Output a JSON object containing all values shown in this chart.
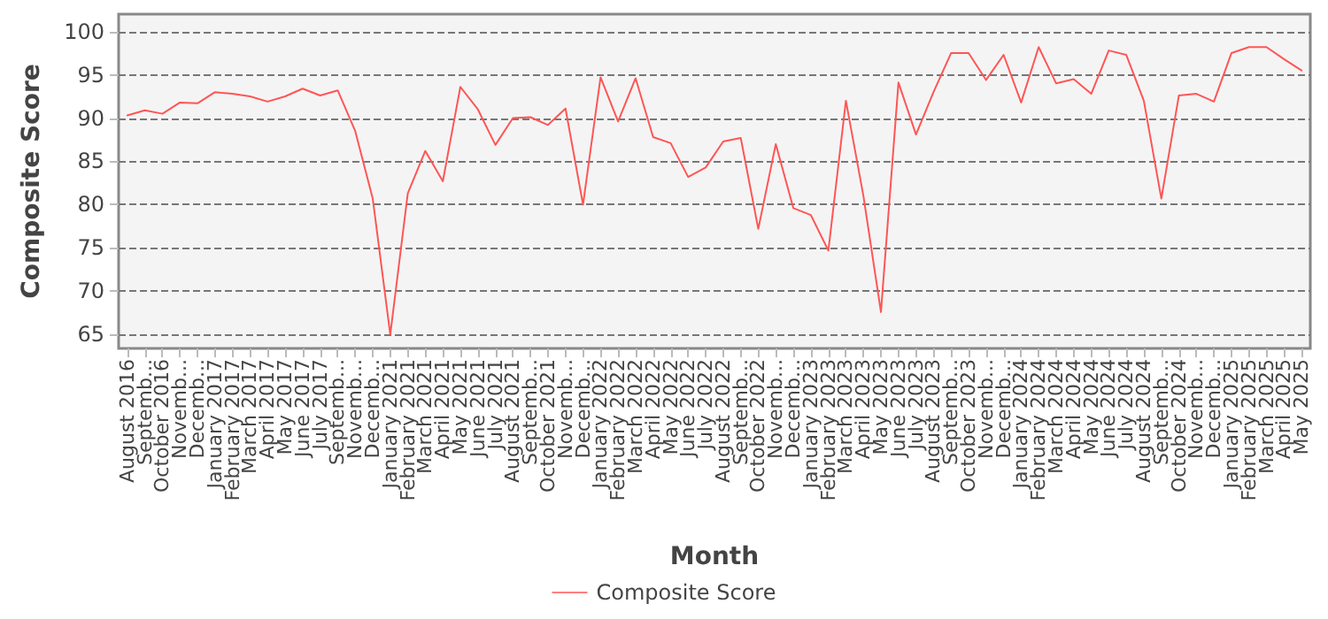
{
  "chart_data": {
    "type": "line",
    "xlabel": "Month",
    "ylabel": "Composite Score",
    "categories": [
      "August 2016",
      "Septemb...",
      "October 2016",
      "Novemb...",
      "Decemb...",
      "January 2017",
      "February 2017",
      "March 2017",
      "April 2017",
      "May 2017",
      "June 2017",
      "July 2017",
      "Septemb...",
      "Novemb...",
      "Decemb...",
      "January 2021",
      "February 2021",
      "March 2021",
      "April 2021",
      "May 2021",
      "June 2021",
      "July 2021",
      "August 2021",
      "Septemb...",
      "October 2021",
      "Novemb...",
      "Decemb...",
      "January 2022",
      "February 2022",
      "March 2022",
      "April 2022",
      "May 2022",
      "June 2022",
      "July 2022",
      "August 2022",
      "Septemb...",
      "October 2022",
      "Novemb...",
      "Decemb...",
      "January 2023",
      "February 2023",
      "March 2023",
      "April 2023",
      "May 2023",
      "June 2023",
      "July 2023",
      "August 2023",
      "Septemb...",
      "October 2023",
      "Novemb...",
      "Decemb...",
      "January 2024",
      "February 2024",
      "March 2024",
      "April 2024",
      "May 2024",
      "June 2024",
      "July 2024",
      "August 2024",
      "Septemb...",
      "October 2024",
      "Novemb...",
      "Decemb...",
      "January 2025",
      "February 2025",
      "March 2025",
      "April 2025",
      "May 2025"
    ],
    "series": [
      {
        "name": "Composite Score",
        "color": "#ff5555",
        "values": [
          90.3,
          90.9,
          90.5,
          91.8,
          91.7,
          93.0,
          92.8,
          92.5,
          91.9,
          92.5,
          93.4,
          92.6,
          93.2,
          88.5,
          80.7,
          65.0,
          81.3,
          86.2,
          82.7,
          93.6,
          91.0,
          86.9,
          90.0,
          90.1,
          89.2,
          91.1,
          80.0,
          94.7,
          89.6,
          94.6,
          87.8,
          87.1,
          83.2,
          84.3,
          87.3,
          87.7,
          77.2,
          87.0,
          79.6,
          78.8,
          74.7,
          92.0,
          81.0,
          67.6,
          94.1,
          88.1,
          93.0,
          97.5,
          97.5,
          94.4,
          97.3,
          91.8,
          98.2,
          94.0,
          94.5,
          92.8,
          97.8,
          97.3,
          92.0,
          80.7,
          92.6,
          92.8,
          91.9,
          97.5,
          98.2,
          98.2,
          96.8,
          95.5
        ]
      }
    ],
    "ylim": [
      63.4,
      102
    ],
    "yticks": [
      65,
      70,
      75,
      80,
      85,
      90,
      95,
      100
    ],
    "grid": "y",
    "legend": "bottom",
    "marker": "none",
    "line_style": "solid"
  }
}
